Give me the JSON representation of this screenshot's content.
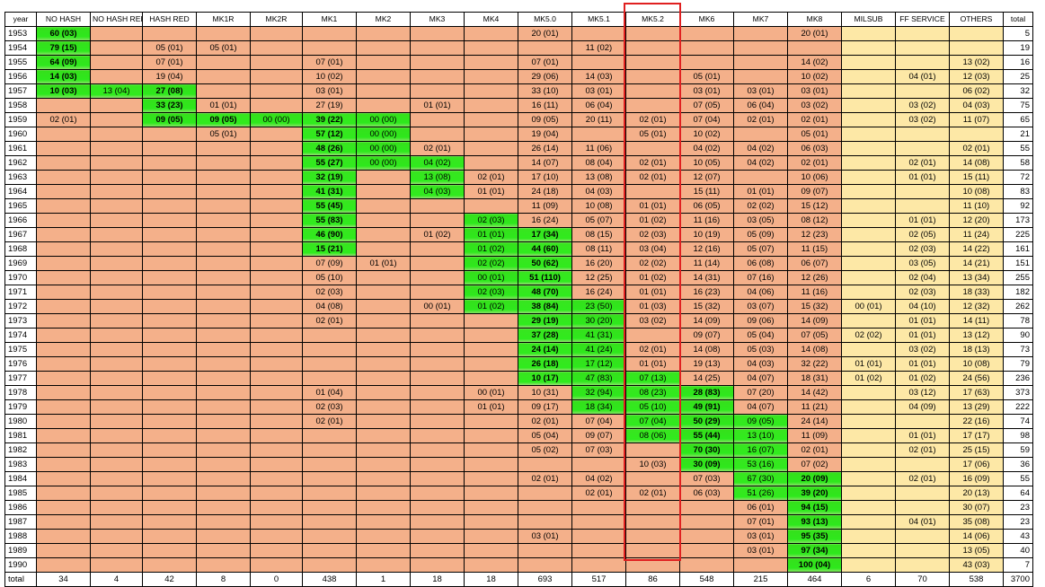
{
  "columns": [
    "year",
    "NO HASH",
    "NO HASH RED",
    "HASH RED",
    "MK1R",
    "MK2R",
    "MK1",
    "MK2",
    "MK3",
    "MK4",
    "MK5.0",
    "MK5.1",
    "MK5.2",
    "MK6",
    "MK7",
    "MK8",
    "MILSUB",
    "FF SERVICE",
    "OTHERS",
    "total"
  ],
  "highlighted_column": "MK5.2",
  "colors": {
    "default": "#f4b08a",
    "late_columns": "#fde8a6",
    "active": "#33e41d",
    "highlight_border": "#e02020"
  },
  "rows": [
    [
      "1953",
      "60 (03)",
      "",
      "",
      "",
      "",
      "",
      "",
      "",
      "",
      "20 (01)",
      "",
      "",
      "",
      "",
      "20 (01)",
      "",
      "",
      "",
      "5"
    ],
    [
      "1954",
      "79 (15)",
      "",
      "05 (01)",
      "05 (01)",
      "",
      "",
      "",
      "",
      "",
      "",
      "11 (02)",
      "",
      "",
      "",
      "",
      "",
      "",
      "",
      "19"
    ],
    [
      "1955",
      "64 (09)",
      "",
      "07 (01)",
      "",
      "",
      "07 (01)",
      "",
      "",
      "",
      "07 (01)",
      "",
      "",
      "",
      "",
      "14 (02)",
      "",
      "",
      "13 (02)",
      "16"
    ],
    [
      "1956",
      "14 (03)",
      "",
      "19 (04)",
      "",
      "",
      "10 (02)",
      "",
      "",
      "",
      "29 (06)",
      "14 (03)",
      "",
      "05 (01)",
      "",
      "10 (02)",
      "",
      "04 (01)",
      "12 (03)",
      "25"
    ],
    [
      "1957",
      "10 (03)",
      "13 (04)",
      "27 (08)",
      "",
      "",
      "03 (01)",
      "",
      "",
      "",
      "33 (10)",
      "03 (01)",
      "",
      "03 (01)",
      "03 (01)",
      "03 (01)",
      "",
      "",
      "06 (02)",
      "32"
    ],
    [
      "1958",
      "",
      "",
      "33 (23)",
      "01 (01)",
      "",
      "27 (19)",
      "",
      "01 (01)",
      "",
      "16 (11)",
      "06 (04)",
      "",
      "07 (05)",
      "06 (04)",
      "03 (02)",
      "",
      "03 (02)",
      "04 (03)",
      "75"
    ],
    [
      "1959",
      "02 (01)",
      "",
      "09 (05)",
      "09 (05)",
      "00 (00)",
      "39 (22)",
      "00 (00)",
      "",
      "",
      "09 (05)",
      "20 (11)",
      "02 (01)",
      "07 (04)",
      "02 (01)",
      "02 (01)",
      "",
      "03 (02)",
      "11 (07)",
      "65"
    ],
    [
      "1960",
      "",
      "",
      "",
      "05 (01)",
      "",
      "57 (12)",
      "00 (00)",
      "",
      "",
      "19 (04)",
      "",
      "05 (01)",
      "10 (02)",
      "",
      "05 (01)",
      "",
      "",
      "",
      "21"
    ],
    [
      "1961",
      "",
      "",
      "",
      "",
      "",
      "48 (26)",
      "00 (00)",
      "02 (01)",
      "",
      "26 (14)",
      "11 (06)",
      "",
      "04 (02)",
      "04 (02)",
      "06 (03)",
      "",
      "",
      "02 (01)",
      "55"
    ],
    [
      "1962",
      "",
      "",
      "",
      "",
      "",
      "55 (27)",
      "00 (00)",
      "04 (02)",
      "",
      "14 (07)",
      "08 (04)",
      "02 (01)",
      "10 (05)",
      "04 (02)",
      "02 (01)",
      "",
      "02 (01)",
      "14 (08)",
      "58"
    ],
    [
      "1963",
      "",
      "",
      "",
      "",
      "",
      "32 (19)",
      "",
      "13 (08)",
      "02 (01)",
      "17 (10)",
      "13 (08)",
      "02 (01)",
      "12 (07)",
      "",
      "10 (06)",
      "",
      "01 (01)",
      "15 (11)",
      "72"
    ],
    [
      "1964",
      "",
      "",
      "",
      "",
      "",
      "41 (31)",
      "",
      "04 (03)",
      "01 (01)",
      "24 (18)",
      "04 (03)",
      "",
      "15 (11)",
      "01 (01)",
      "09 (07)",
      "",
      "",
      "10 (08)",
      "83"
    ],
    [
      "1965",
      "",
      "",
      "",
      "",
      "",
      "55 (45)",
      "",
      "",
      "",
      "11 (09)",
      "10 (08)",
      "01 (01)",
      "06 (05)",
      "02 (02)",
      "15 (12)",
      "",
      "",
      "11 (10)",
      "92"
    ],
    [
      "1966",
      "",
      "",
      "",
      "",
      "",
      "55 (83)",
      "",
      "",
      "02 (03)",
      "16 (24)",
      "05 (07)",
      "01 (02)",
      "11 (16)",
      "03 (05)",
      "08 (12)",
      "",
      "01 (01)",
      "12 (20)",
      "173"
    ],
    [
      "1967",
      "",
      "",
      "",
      "",
      "",
      "46 (90)",
      "",
      "01 (02)",
      "01 (01)",
      "17 (34)",
      "08 (15)",
      "02 (03)",
      "10 (19)",
      "05 (09)",
      "12 (23)",
      "",
      "02 (05)",
      "11 (24)",
      "225"
    ],
    [
      "1968",
      "",
      "",
      "",
      "",
      "",
      "15 (21)",
      "",
      "",
      "01 (02)",
      "44 (60)",
      "08 (11)",
      "03 (04)",
      "12 (16)",
      "05 (07)",
      "11 (15)",
      "",
      "02 (03)",
      "14 (22)",
      "161"
    ],
    [
      "1969",
      "",
      "",
      "",
      "",
      "",
      "07 (09)",
      "01 (01)",
      "",
      "02 (02)",
      "50 (62)",
      "16 (20)",
      "02 (02)",
      "11 (14)",
      "06 (08)",
      "06 (07)",
      "",
      "03 (05)",
      "14 (21)",
      "151"
    ],
    [
      "1970",
      "",
      "",
      "",
      "",
      "",
      "05 (10)",
      "",
      "",
      "00 (01)",
      "51 (110)",
      "12 (25)",
      "01 (02)",
      "14 (31)",
      "07 (16)",
      "12 (26)",
      "",
      "02 (04)",
      "13 (34)",
      "255"
    ],
    [
      "1971",
      "",
      "",
      "",
      "",
      "",
      "02 (03)",
      "",
      "",
      "02 (03)",
      "48 (70)",
      "16 (24)",
      "01 (01)",
      "16 (23)",
      "04 (06)",
      "11 (16)",
      "",
      "02 (03)",
      "18 (33)",
      "182"
    ],
    [
      "1972",
      "",
      "",
      "",
      "",
      "",
      "04 (08)",
      "",
      "00 (01)",
      "01 (02)",
      "38 (84)",
      "23 (50)",
      "01 (03)",
      "15 (32)",
      "03 (07)",
      "15 (32)",
      "00 (01)",
      "04 (10)",
      "12 (32)",
      "262"
    ],
    [
      "1973",
      "",
      "",
      "",
      "",
      "",
      "02 (01)",
      "",
      "",
      "",
      "29 (19)",
      "30 (20)",
      "03 (02)",
      "14 (09)",
      "09 (06)",
      "14 (09)",
      "",
      "01 (01)",
      "14 (11)",
      "78"
    ],
    [
      "1974",
      "",
      "",
      "",
      "",
      "",
      "",
      "",
      "",
      "",
      "37 (28)",
      "41 (31)",
      "",
      "09 (07)",
      "05 (04)",
      "07 (05)",
      "02 (02)",
      "01 (01)",
      "13 (12)",
      "90"
    ],
    [
      "1975",
      "",
      "",
      "",
      "",
      "",
      "",
      "",
      "",
      "",
      "24 (14)",
      "41 (24)",
      "02 (01)",
      "14 (08)",
      "05 (03)",
      "14 (08)",
      "",
      "03 (02)",
      "18 (13)",
      "73"
    ],
    [
      "1976",
      "",
      "",
      "",
      "",
      "",
      "",
      "",
      "",
      "",
      "26 (18)",
      "17 (12)",
      "01 (01)",
      "19 (13)",
      "04 (03)",
      "32 (22)",
      "01 (01)",
      "01 (01)",
      "10 (08)",
      "79"
    ],
    [
      "1977",
      "",
      "",
      "",
      "",
      "",
      "",
      "",
      "",
      "",
      "10 (17)",
      "47 (83)",
      "07 (13)",
      "14 (25)",
      "04 (07)",
      "18 (31)",
      "01 (02)",
      "01 (02)",
      "24 (56)",
      "236"
    ],
    [
      "1978",
      "",
      "",
      "",
      "",
      "",
      "01 (04)",
      "",
      "",
      "00 (01)",
      "10 (31)",
      "32 (94)",
      "08 (23)",
      "28 (83)",
      "07 (20)",
      "14 (42)",
      "",
      "03 (12)",
      "17 (63)",
      "373"
    ],
    [
      "1979",
      "",
      "",
      "",
      "",
      "",
      "02 (03)",
      "",
      "",
      "01 (01)",
      "09 (17)",
      "18 (34)",
      "05 (10)",
      "49 (91)",
      "04 (07)",
      "11 (21)",
      "",
      "04 (09)",
      "13 (29)",
      "222"
    ],
    [
      "1980",
      "",
      "",
      "",
      "",
      "",
      "02 (01)",
      "",
      "",
      "",
      "02 (01)",
      "07 (04)",
      "07 (04)",
      "50 (29)",
      "09 (05)",
      "24 (14)",
      "",
      "",
      "22 (16)",
      "74"
    ],
    [
      "1981",
      "",
      "",
      "",
      "",
      "",
      "",
      "",
      "",
      "",
      "05 (04)",
      "09 (07)",
      "08 (06)",
      "55 (44)",
      "13 (10)",
      "11 (09)",
      "",
      "01 (01)",
      "17 (17)",
      "98"
    ],
    [
      "1982",
      "",
      "",
      "",
      "",
      "",
      "",
      "",
      "",
      "",
      "05 (02)",
      "07 (03)",
      "",
      "70 (30)",
      "16 (07)",
      "02 (01)",
      "",
      "02 (01)",
      "25 (15)",
      "59"
    ],
    [
      "1983",
      "",
      "",
      "",
      "",
      "",
      "",
      "",
      "",
      "",
      "",
      "",
      "10 (03)",
      "30 (09)",
      "53 (16)",
      "07 (02)",
      "",
      "",
      "17 (06)",
      "36"
    ],
    [
      "1984",
      "",
      "",
      "",
      "",
      "",
      "",
      "",
      "",
      "",
      "02 (01)",
      "04 (02)",
      "",
      "07 (03)",
      "67 (30)",
      "20 (09)",
      "",
      "02 (01)",
      "16 (09)",
      "55"
    ],
    [
      "1985",
      "",
      "",
      "",
      "",
      "",
      "",
      "",
      "",
      "",
      "",
      "02 (01)",
      "02 (01)",
      "06 (03)",
      "51 (26)",
      "39 (20)",
      "",
      "",
      "20 (13)",
      "64"
    ],
    [
      "1986",
      "",
      "",
      "",
      "",
      "",
      "",
      "",
      "",
      "",
      "",
      "",
      "",
      "",
      "06 (01)",
      "94 (15)",
      "",
      "",
      "30 (07)",
      "23"
    ],
    [
      "1987",
      "",
      "",
      "",
      "",
      "",
      "",
      "",
      "",
      "",
      "",
      "",
      "",
      "",
      "07 (01)",
      "93 (13)",
      "",
      "04 (01)",
      "35 (08)",
      "23"
    ],
    [
      "1988",
      "",
      "",
      "",
      "",
      "",
      "",
      "",
      "",
      "",
      "03 (01)",
      "",
      "",
      "",
      "03 (01)",
      "95 (35)",
      "",
      "",
      "14 (06)",
      "43"
    ],
    [
      "1989",
      "",
      "",
      "",
      "",
      "",
      "",
      "",
      "",
      "",
      "",
      "",
      "",
      "",
      "03 (01)",
      "97 (34)",
      "",
      "",
      "13 (05)",
      "40"
    ],
    [
      "1990",
      "",
      "",
      "",
      "",
      "",
      "",
      "",
      "",
      "",
      "",
      "",
      "",
      "",
      "",
      "100 (04)",
      "",
      "",
      "43 (03)",
      "7"
    ]
  ],
  "total_row": [
    "total",
    "34",
    "4",
    "42",
    "8",
    "0",
    "438",
    "1",
    "18",
    "18",
    "693",
    "517",
    "86",
    "548",
    "215",
    "464",
    "6",
    "70",
    "538",
    "3700"
  ],
  "active_cells": {
    "1953": [
      1
    ],
    "1954": [
      1
    ],
    "1955": [
      1
    ],
    "1956": [
      1
    ],
    "1957": [
      1,
      2,
      3
    ],
    "1958": [
      3
    ],
    "1959": [
      3,
      4,
      5,
      6,
      7
    ],
    "1960": [
      6,
      7
    ],
    "1961": [
      6,
      7
    ],
    "1962": [
      6,
      7,
      8
    ],
    "1963": [
      6,
      8
    ],
    "1964": [
      6,
      8
    ],
    "1965": [
      6
    ],
    "1966": [
      6,
      9
    ],
    "1967": [
      6,
      9,
      10
    ],
    "1968": [
      6,
      9,
      10
    ],
    "1969": [
      9,
      10
    ],
    "1970": [
      9,
      10
    ],
    "1971": [
      9,
      10
    ],
    "1972": [
      9,
      10,
      11
    ],
    "1973": [
      10,
      11
    ],
    "1974": [
      10,
      11
    ],
    "1975": [
      10,
      11
    ],
    "1976": [
      10,
      11
    ],
    "1977": [
      10,
      11,
      12
    ],
    "1978": [
      11,
      12,
      13
    ],
    "1979": [
      11,
      12,
      13
    ],
    "1980": [
      12,
      13,
      14
    ],
    "1981": [
      12,
      13,
      14
    ],
    "1982": [
      13,
      14
    ],
    "1983": [
      13,
      14
    ],
    "1984": [
      14,
      15
    ],
    "1985": [
      14,
      15
    ],
    "1986": [
      15
    ],
    "1987": [
      15
    ],
    "1988": [
      15
    ],
    "1989": [
      15
    ],
    "1990": [
      15
    ]
  },
  "bold_cells": {
    "1953": [
      1
    ],
    "1954": [
      1
    ],
    "1955": [
      1
    ],
    "1956": [
      1
    ],
    "1957": [
      1,
      3
    ],
    "1958": [
      3
    ],
    "1959": [
      3,
      4,
      6
    ],
    "1960": [
      6
    ],
    "1961": [
      6
    ],
    "1962": [
      6
    ],
    "1963": [
      6
    ],
    "1964": [
      6
    ],
    "1965": [
      6
    ],
    "1966": [
      6
    ],
    "1967": [
      6,
      10
    ],
    "1968": [
      6,
      10
    ],
    "1969": [
      10
    ],
    "1970": [
      10
    ],
    "1971": [
      10
    ],
    "1972": [
      10
    ],
    "1973": [
      10
    ],
    "1974": [
      10
    ],
    "1975": [
      10
    ],
    "1976": [
      10
    ],
    "1977": [
      10
    ],
    "1978": [
      13
    ],
    "1979": [
      13
    ],
    "1980": [
      13
    ],
    "1981": [
      13
    ],
    "1982": [
      13
    ],
    "1983": [
      13
    ],
    "1984": [
      15
    ],
    "1985": [
      15
    ],
    "1986": [
      15
    ],
    "1987": [
      15
    ],
    "1988": [
      15
    ],
    "1989": [
      15
    ],
    "1990": [
      15
    ]
  }
}
